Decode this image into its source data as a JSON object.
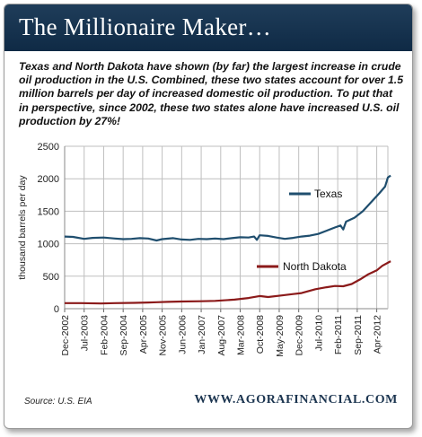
{
  "header": {
    "title": "The Millionaire Maker…"
  },
  "description": "Texas and North Dakota have shown (by far) the largest increase in crude oil production in the U.S.  Combined, these two states account for over 1.5 million barrels per day of increased domestic oil production. To put that in perspective, since 2002, these two states alone have increased U.S. oil production by 27%!",
  "footer": {
    "source": "Source: U.S. EIA",
    "site": "WWW.AGORAFINANCIAL.COM"
  },
  "colors": {
    "header_bg": "#1a3552",
    "texas": "#1f4e6e",
    "north_dakota": "#8b1a1a",
    "grid": "#bfbfbf"
  },
  "chart_data": {
    "type": "line",
    "title": "",
    "ylabel": "thousand barrels per day",
    "xlabel": "",
    "ylim": [
      0,
      2500
    ],
    "yticks": [
      0,
      500,
      1000,
      1500,
      2000,
      2500
    ],
    "xlim": [
      "2002-12",
      "2012-08"
    ],
    "xticks": [
      "Dec-2002",
      "Jul-2003",
      "Feb-2004",
      "Sep-2004",
      "Apr-2005",
      "Nov-2005",
      "Jun-2006",
      "Jan-2007",
      "Aug-2007",
      "Mar-2008",
      "Oct-2008",
      "May-2009",
      "Dec-2009",
      "Jul-2010",
      "Feb-2011",
      "Sep-2011",
      "Apr-2012"
    ],
    "grid": true,
    "legend": "inline labels",
    "series": [
      {
        "name": "Texas",
        "color": "#1f4e6e",
        "points": [
          [
            "2002-12",
            1110
          ],
          [
            "2003-03",
            1105
          ],
          [
            "2003-07",
            1075
          ],
          [
            "2003-10",
            1090
          ],
          [
            "2004-02",
            1095
          ],
          [
            "2004-06",
            1080
          ],
          [
            "2004-09",
            1070
          ],
          [
            "2004-12",
            1075
          ],
          [
            "2005-03",
            1085
          ],
          [
            "2005-06",
            1080
          ],
          [
            "2005-09",
            1050
          ],
          [
            "2005-11",
            1070
          ],
          [
            "2006-03",
            1085
          ],
          [
            "2006-06",
            1065
          ],
          [
            "2006-09",
            1060
          ],
          [
            "2006-12",
            1075
          ],
          [
            "2007-03",
            1070
          ],
          [
            "2007-06",
            1080
          ],
          [
            "2007-09",
            1070
          ],
          [
            "2007-12",
            1085
          ],
          [
            "2008-03",
            1100
          ],
          [
            "2008-06",
            1095
          ],
          [
            "2008-08",
            1110
          ],
          [
            "2008-09",
            1060
          ],
          [
            "2008-10",
            1130
          ],
          [
            "2009-01",
            1120
          ],
          [
            "2009-04",
            1095
          ],
          [
            "2009-07",
            1075
          ],
          [
            "2009-10",
            1090
          ],
          [
            "2010-01",
            1110
          ],
          [
            "2010-04",
            1125
          ],
          [
            "2010-07",
            1150
          ],
          [
            "2010-10",
            1200
          ],
          [
            "2011-01",
            1250
          ],
          [
            "2011-03",
            1280
          ],
          [
            "2011-04",
            1220
          ],
          [
            "2011-05",
            1340
          ],
          [
            "2011-08",
            1400
          ],
          [
            "2011-11",
            1500
          ],
          [
            "2012-02",
            1640
          ],
          [
            "2012-05",
            1780
          ],
          [
            "2012-07",
            1880
          ],
          [
            "2012-08",
            2020
          ],
          [
            "2012-09",
            2050
          ]
        ]
      },
      {
        "name": "North Dakota",
        "color": "#8b1a1a",
        "points": [
          [
            "2002-12",
            85
          ],
          [
            "2003-06",
            85
          ],
          [
            "2004-01",
            80
          ],
          [
            "2004-06",
            85
          ],
          [
            "2005-01",
            90
          ],
          [
            "2005-06",
            95
          ],
          [
            "2005-09",
            100
          ],
          [
            "2006-01",
            105
          ],
          [
            "2006-06",
            110
          ],
          [
            "2007-01",
            115
          ],
          [
            "2007-06",
            120
          ],
          [
            "2008-01",
            140
          ],
          [
            "2008-06",
            165
          ],
          [
            "2008-10",
            195
          ],
          [
            "2009-01",
            180
          ],
          [
            "2009-06",
            205
          ],
          [
            "2009-10",
            225
          ],
          [
            "2010-01",
            240
          ],
          [
            "2010-06",
            300
          ],
          [
            "2010-10",
            330
          ],
          [
            "2011-01",
            350
          ],
          [
            "2011-04",
            345
          ],
          [
            "2011-07",
            380
          ],
          [
            "2011-10",
            450
          ],
          [
            "2012-01",
            530
          ],
          [
            "2012-04",
            590
          ],
          [
            "2012-06",
            660
          ],
          [
            "2012-09",
            730
          ]
        ]
      }
    ]
  }
}
